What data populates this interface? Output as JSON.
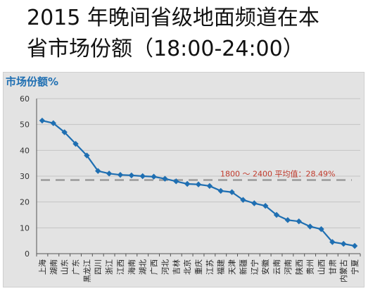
{
  "page": {
    "title_line1": "2015 年晚间省级地面频道在本",
    "title_line2": "省市场份额（18:00-24:00）"
  },
  "chart_data": {
    "type": "line",
    "ylabel": "市场份额%",
    "ylim": [
      0,
      60
    ],
    "yticks": [
      0,
      10,
      20,
      30,
      40,
      50,
      60
    ],
    "grid": true,
    "categories": [
      "上海",
      "湖南",
      "山东",
      "广东",
      "黑龙江",
      "四川",
      "浙江",
      "江西",
      "海南",
      "湖北",
      "广西",
      "河北",
      "吉林",
      "北京",
      "重庆",
      "江苏",
      "福建",
      "天津",
      "新疆",
      "辽宁",
      "安徽",
      "云南",
      "河南",
      "陕西",
      "贵州",
      "山西",
      "甘肃",
      "内蒙古",
      "宁夏"
    ],
    "series": [
      {
        "values": [
          51.5,
          50.5,
          47,
          42.5,
          38,
          32,
          31,
          30.5,
          30.3,
          30,
          29.8,
          29,
          28,
          27,
          26.8,
          26.2,
          24.3,
          23.8,
          20.8,
          19.5,
          18.5,
          15,
          13,
          12.5,
          10.5,
          9.5,
          4.5,
          3.8,
          3
        ]
      }
    ],
    "reference_line": {
      "value": 28.49,
      "label": "1800 ～ 2400  平均值：28.49%"
    },
    "colors": {
      "line": "#1f6fb2",
      "marker": "#1f6fb2",
      "reference": "#9a9a9a",
      "reference_label": "#c0392b"
    }
  }
}
